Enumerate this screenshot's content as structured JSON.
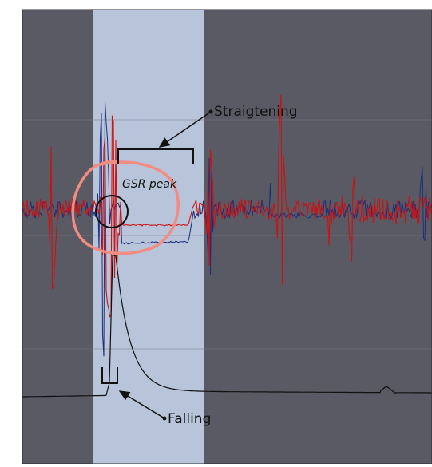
{
  "chart_data": {
    "type": "line",
    "title": "",
    "xlabel": "",
    "ylabel": "",
    "grid": true,
    "highlight_region_color": "#b7c4d9",
    "background_color": "#5a5a64",
    "series": [
      {
        "color": "#1d2e7a"
      },
      {
        "color": "#cc1111"
      },
      {
        "color": "#111111"
      }
    ],
    "annotations": {
      "straightening": "Straigtening",
      "gsr_peak": "GSR peak",
      "falling": "Falling"
    }
  }
}
